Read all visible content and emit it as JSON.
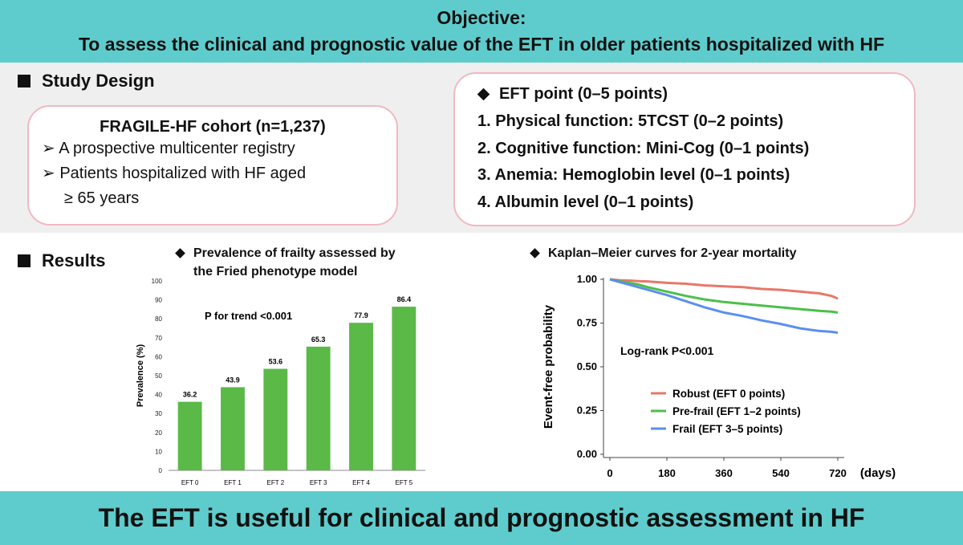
{
  "header": {
    "line1": "Objective:",
    "line2": "To assess the clinical and prognostic value of the EFT in older patients hospitalized with HF"
  },
  "study_design": {
    "title": "Study Design",
    "cohort": {
      "title": "FRAGILE-HF cohort (n=1,237)",
      "bullets": [
        "A prospective multicenter registry",
        "Patients hospitalized with HF aged",
        "≥ 65 years"
      ]
    },
    "eft": {
      "title": "EFT point (0–5 points)",
      "items": [
        "1.  Physical function: 5TCST (0–2 points)",
        "2.  Cognitive function: Mini-Cog (0–1 points)",
        "3.  Anemia: Hemoglobin level (0–1 points)",
        "4.  Albumin level (0–1 points)"
      ]
    }
  },
  "results": {
    "title": "Results"
  },
  "chart_data": [
    {
      "type": "bar",
      "title": "Prevalence of frailty assessed by the Fried phenotype model",
      "title_line1": "Prevalence of frailty assessed by",
      "title_line2": "the Fried phenotype model",
      "categories": [
        "EFT 0",
        "EFT 1",
        "EFT 2",
        "EFT 3",
        "EFT 4",
        "EFT 5"
      ],
      "values": [
        36.2,
        43.9,
        53.6,
        65.3,
        77.9,
        86.4
      ],
      "value_labels": [
        "36.2",
        "43.9",
        "53.6",
        "65.3",
        "77.9",
        "86.4"
      ],
      "ylabel": "Prevalence (%)",
      "ylim": [
        0,
        100
      ],
      "yticks": [
        0,
        10,
        20,
        30,
        40,
        50,
        60,
        70,
        80,
        90,
        100
      ],
      "annotation": "P for trend <0.001",
      "bar_color": "#5ab947"
    },
    {
      "type": "line",
      "title": "Kaplan–Meier curves for 2-year mortality",
      "xlabel": "(days)",
      "ylabel": "Event-free probability",
      "xlim": [
        0,
        720
      ],
      "ylim": [
        0,
        1
      ],
      "xticks": [
        "0",
        "180",
        "360",
        "540",
        "720"
      ],
      "yticks": [
        "0.00",
        "0.25",
        "0.50",
        "0.75",
        "1.00"
      ],
      "annotation": "Log-rank P<0.001",
      "series": [
        {
          "name": "Robust (EFT 0 points)",
          "color": "#e8776a",
          "x": [
            0,
            30,
            60,
            90,
            120,
            180,
            240,
            300,
            360,
            420,
            480,
            540,
            600,
            660,
            700,
            720
          ],
          "y": [
            1.0,
            0.995,
            0.993,
            0.99,
            0.988,
            0.98,
            0.975,
            0.965,
            0.96,
            0.955,
            0.945,
            0.94,
            0.93,
            0.92,
            0.905,
            0.89
          ]
        },
        {
          "name": "Pre-frail (EFT 1–2 points)",
          "color": "#4cbf4a",
          "x": [
            0,
            30,
            60,
            90,
            120,
            180,
            240,
            300,
            360,
            420,
            480,
            540,
            600,
            660,
            700,
            720
          ],
          "y": [
            1.0,
            0.99,
            0.98,
            0.97,
            0.955,
            0.93,
            0.905,
            0.885,
            0.87,
            0.86,
            0.85,
            0.84,
            0.83,
            0.82,
            0.815,
            0.81
          ]
        },
        {
          "name": "Frail (EFT 3–5 points)",
          "color": "#5b8ef0",
          "x": [
            0,
            30,
            60,
            90,
            120,
            180,
            240,
            300,
            360,
            420,
            480,
            540,
            600,
            660,
            700,
            720
          ],
          "y": [
            1.0,
            0.985,
            0.97,
            0.955,
            0.94,
            0.91,
            0.875,
            0.84,
            0.81,
            0.79,
            0.765,
            0.745,
            0.72,
            0.705,
            0.7,
            0.695
          ]
        }
      ]
    }
  ],
  "footer": {
    "conclusion": "The EFT is useful for clinical and prognostic assessment in HF"
  }
}
